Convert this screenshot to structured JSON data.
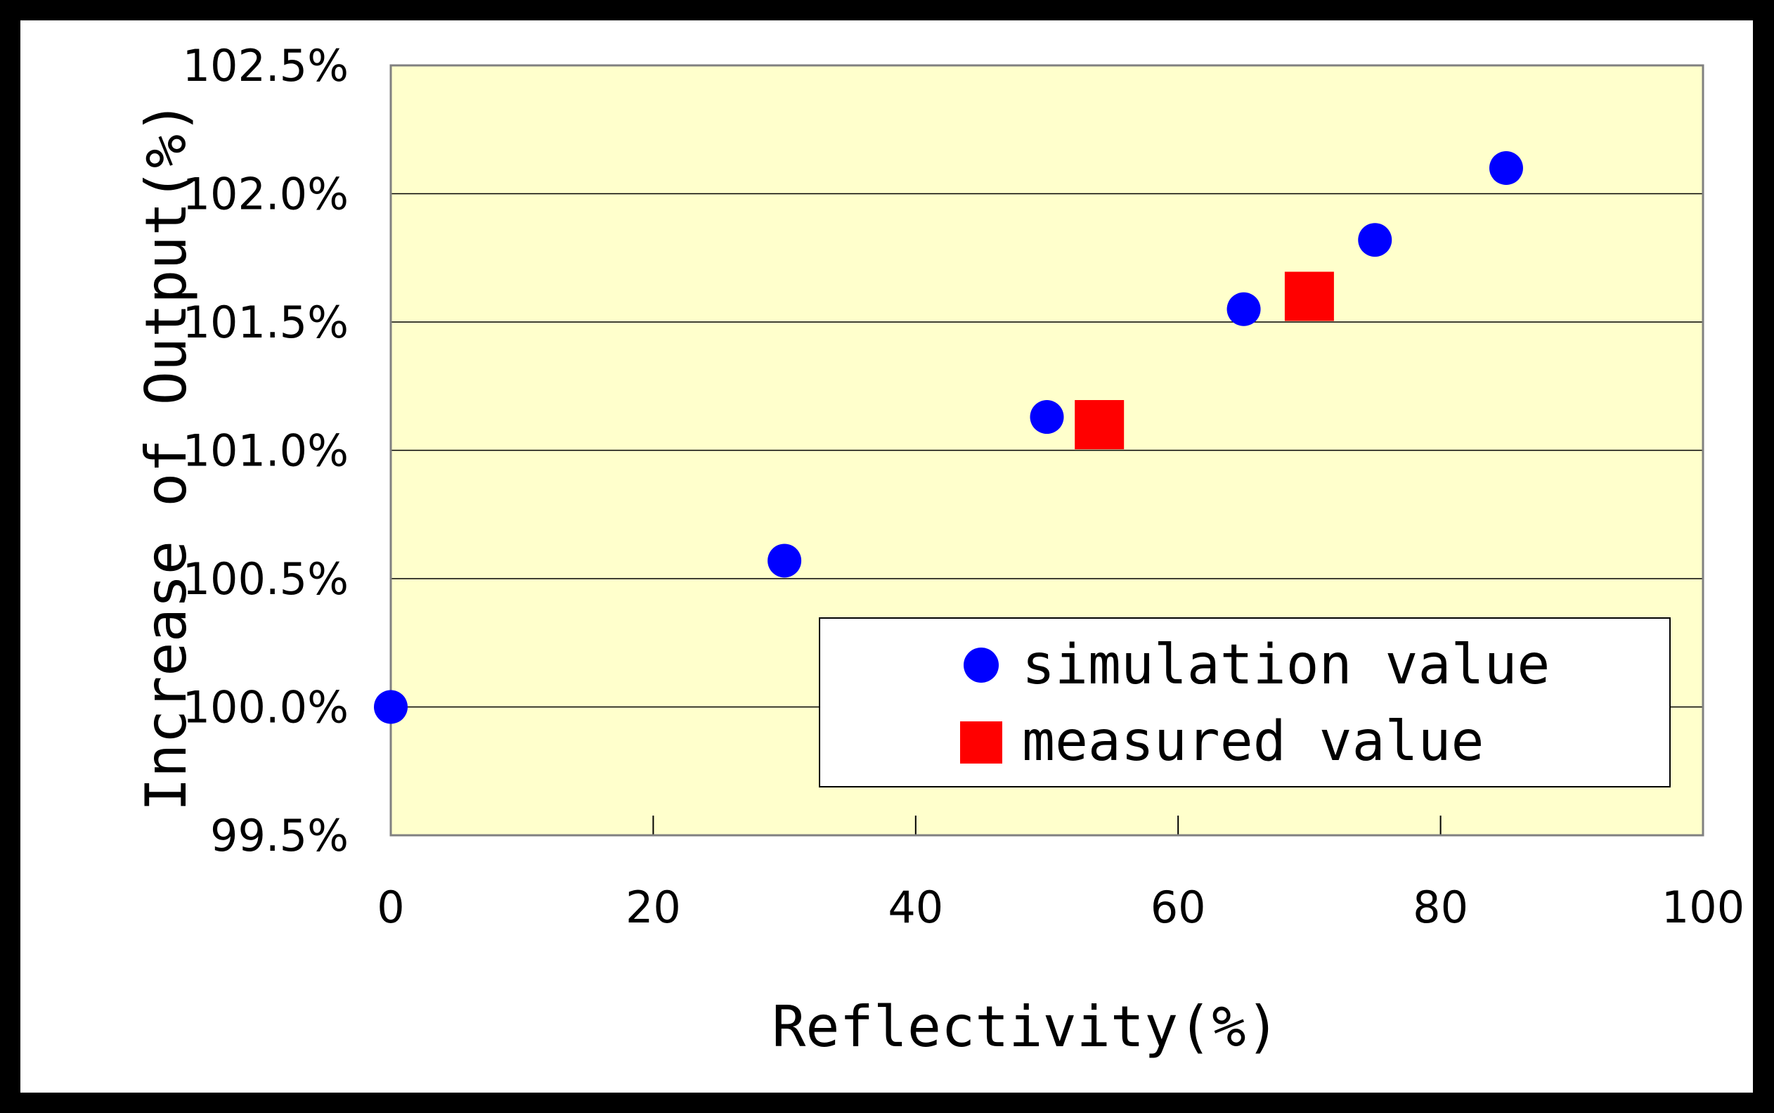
{
  "chart_data": {
    "type": "scatter",
    "xlabel": "Reflectivity(%)",
    "ylabel": "Increase of Output(%)",
    "xlim": [
      0,
      100
    ],
    "ylim": [
      99.5,
      102.5
    ],
    "x_ticks": [
      "0",
      "20",
      "40",
      "60",
      "80",
      "100"
    ],
    "y_ticks": [
      "99.5%",
      "100.0%",
      "100.5%",
      "101.0%",
      "101.5%",
      "102.0%",
      "102.5%"
    ],
    "grid": "horizontal",
    "plot_background": "#FFFFCC",
    "legend_position": "bottom-right",
    "series": [
      {
        "name": "simulation value",
        "marker": "circle",
        "color": "#0000FF",
        "points": [
          [
            0,
            100.0
          ],
          [
            30,
            100.57
          ],
          [
            50,
            101.13
          ],
          [
            65,
            101.55
          ],
          [
            75,
            101.82
          ],
          [
            85,
            102.1
          ]
        ]
      },
      {
        "name": "measured value",
        "marker": "square",
        "color": "#FF0000",
        "points": [
          [
            54,
            101.1
          ],
          [
            70,
            101.6
          ]
        ]
      }
    ]
  }
}
